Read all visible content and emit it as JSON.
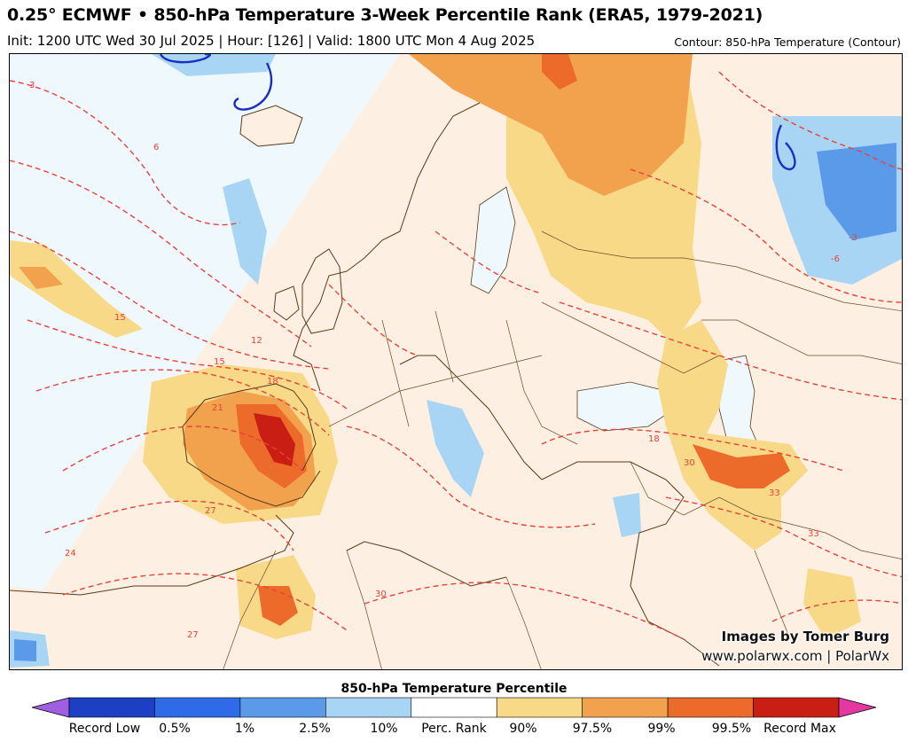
{
  "header": {
    "title": "0.25° ECMWF • 850-hPa Temperature 3-Week Percentile Rank (ERA5, 1979-2021)",
    "subtitle": "Init: 1200 UTC Wed 30 Jul 2025 | Hour: [126] | Valid: 1800 UTC Mon 4 Aug 2025",
    "contour_note": "Contour: 850-hPa Temperature (Contour)"
  },
  "credits": {
    "line1": "Images by Tomer Burg",
    "line2": "www.polarwx.com | PolarWx"
  },
  "contour_labels": [
    "3",
    "6",
    "12",
    "15",
    "18",
    "21",
    "24",
    "27",
    "30",
    "33",
    "-3",
    "-6"
  ],
  "legend": {
    "title": "850-hPa Temperature Percentile",
    "ticks": [
      "Record Low",
      "0.5%",
      "1%",
      "2.5%",
      "10%",
      "Perc. Rank",
      "90%",
      "97.5%",
      "99%",
      "99.5%",
      "Record Max"
    ],
    "colors": [
      "#9f5fe0",
      "#1c3fc4",
      "#2f6ae8",
      "#5a9ae8",
      "#a9d5f5",
      "#ffffff",
      "#f7d987",
      "#f2a24c",
      "#ec6a2a",
      "#c81e14",
      "#e4379f"
    ]
  }
}
